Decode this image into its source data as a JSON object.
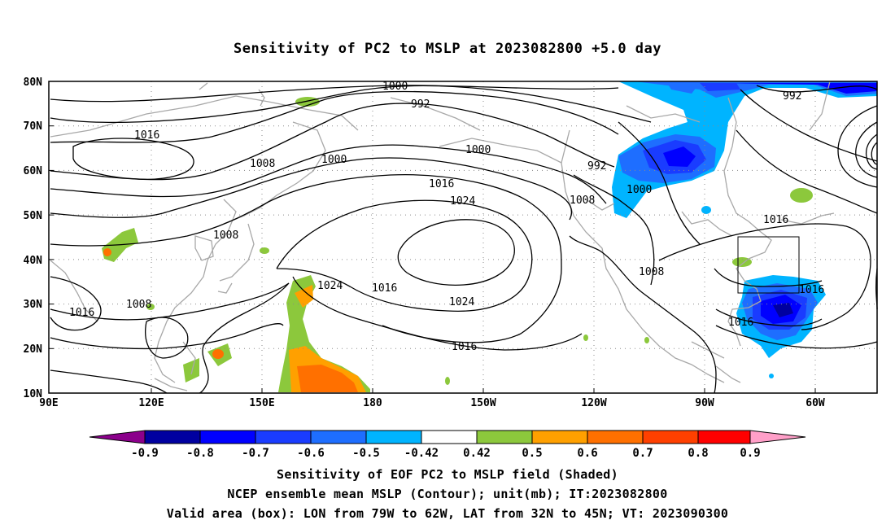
{
  "title": "Sensitivity of PC2 to MSLP at 2023082800 +5.0 day",
  "map": {
    "lat_labels": [
      "80N",
      "70N",
      "60N",
      "50N",
      "40N",
      "30N",
      "20N",
      "10N"
    ],
    "lon_labels": [
      "90E",
      "120E",
      "150E",
      "180",
      "150W",
      "120W",
      "90W",
      "60W"
    ],
    "contour_labels": {
      "c1000a": "1000",
      "c992a": "992",
      "c1016a": "1016",
      "c1008a": "1008",
      "c1000b": "1000",
      "c1000c": "1000",
      "c1016b": "1016",
      "c1024a": "1024",
      "c992b": "992",
      "c1008b": "1008",
      "c1000d": "1000",
      "c992c": "992",
      "c1008c": "1008",
      "c1016c": "1016",
      "c1024b": "1024",
      "c1016d": "1016",
      "c1024c": "1024",
      "c1016e": "1016",
      "c1008d": "1008",
      "c1016f": "1016",
      "c1016g": "1016",
      "c1016h": "1016",
      "c1008e": "1008"
    }
  },
  "colorbar": {
    "labels": [
      "-0.9",
      "-0.8",
      "-0.7",
      "-0.6",
      "-0.5",
      "-0.42",
      "0.42",
      "0.5",
      "0.6",
      "0.7",
      "0.8",
      "0.9"
    ],
    "colors": [
      "#8b008b",
      "#0000a0",
      "#0000ff",
      "#1a3cff",
      "#1e6eff",
      "#00b4ff",
      "#ffffff",
      "#8cc83c",
      "#ffa000",
      "#ff7000",
      "#ff4000",
      "#ff0000",
      "#ff9fc8"
    ]
  },
  "captions": {
    "line1": "Sensitivity of EOF PC2 to MSLP field (Shaded)",
    "line2": "NCEP ensemble mean MSLP (Contour); unit(mb); IT:2023082800",
    "line3": "Valid area (box): LON from 79W to 62W, LAT from 32N to 45N; VT: 2023090300"
  }
}
